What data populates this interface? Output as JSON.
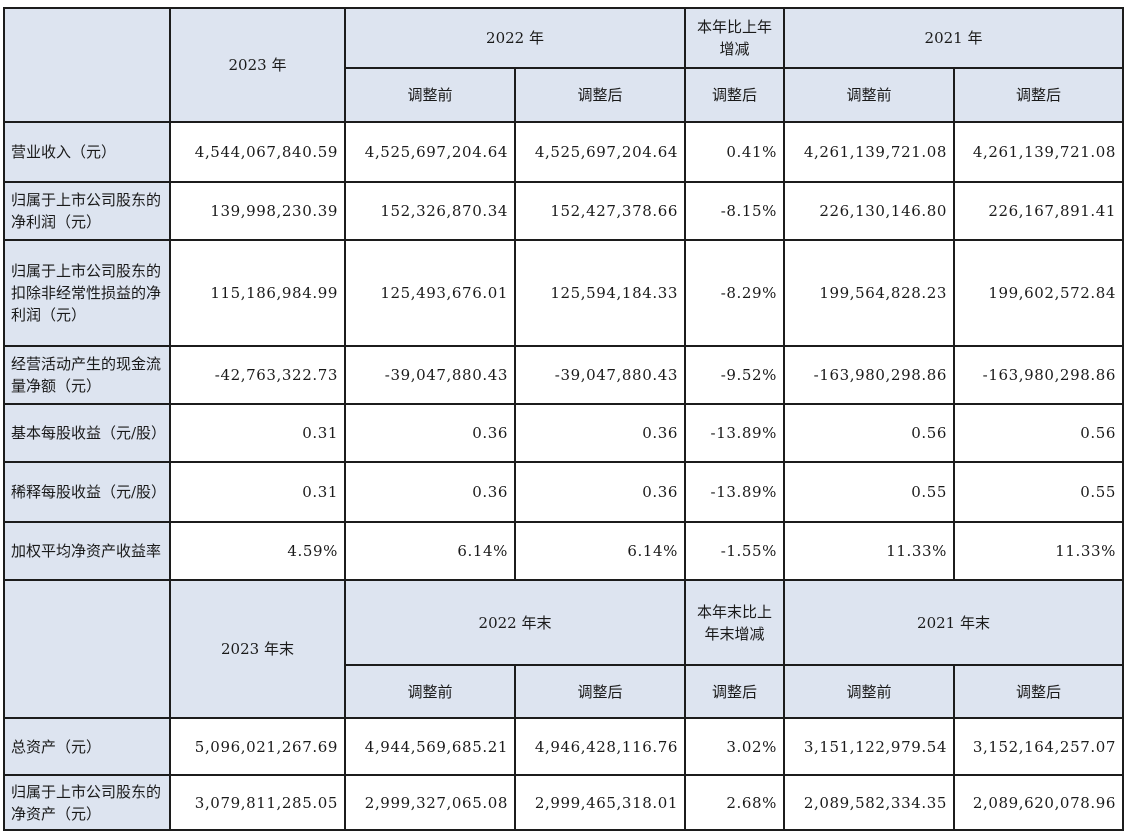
{
  "header1": {
    "y2023": "2023 年",
    "y2022": "2022 年",
    "change": "本年比上年增减",
    "y2021": "2021 年",
    "before": "调整前",
    "after": "调整后",
    "change_after": "调整后",
    "before_2021": "调整前",
    "after_2021": "调整后"
  },
  "rows1": [
    {
      "label": "营业收入（元）",
      "v2023": "4,544,067,840.59",
      "v2022_before": "4,525,697,204.64",
      "v2022_after": "4,525,697,204.64",
      "change": "0.41%",
      "v2021_before": "4,261,139,721.08",
      "v2021_after": "4,261,139,721.08"
    },
    {
      "label": "归属于上市公司股东的净利润（元）",
      "v2023": "139,998,230.39",
      "v2022_before": "152,326,870.34",
      "v2022_after": "152,427,378.66",
      "change": "-8.15%",
      "v2021_before": "226,130,146.80",
      "v2021_after": "226,167,891.41"
    },
    {
      "label": "归属于上市公司股东的扣除非经常性损益的净利润（元）",
      "v2023": "115,186,984.99",
      "v2022_before": "125,493,676.01",
      "v2022_after": "125,594,184.33",
      "change": "-8.29%",
      "v2021_before": "199,564,828.23",
      "v2021_after": "199,602,572.84"
    },
    {
      "label": "经营活动产生的现金流量净额（元）",
      "v2023": "-42,763,322.73",
      "v2022_before": "-39,047,880.43",
      "v2022_after": "-39,047,880.43",
      "change": "-9.52%",
      "v2021_before": "-163,980,298.86",
      "v2021_after": "-163,980,298.86"
    },
    {
      "label": "基本每股收益（元/股）",
      "v2023": "0.31",
      "v2022_before": "0.36",
      "v2022_after": "0.36",
      "change": "-13.89%",
      "v2021_before": "0.56",
      "v2021_after": "0.56"
    },
    {
      "label": "稀释每股收益（元/股）",
      "v2023": "0.31",
      "v2022_before": "0.36",
      "v2022_after": "0.36",
      "change": "-13.89%",
      "v2021_before": "0.55",
      "v2021_after": "0.55"
    },
    {
      "label": "加权平均净资产收益率",
      "v2023": "4.59%",
      "v2022_before": "6.14%",
      "v2022_after": "6.14%",
      "change": "-1.55%",
      "v2021_before": "11.33%",
      "v2021_after": "11.33%"
    }
  ],
  "header2": {
    "y2023": "2023 年末",
    "y2022": "2022 年末",
    "change": "本年末比上年末增减",
    "y2021": "2021 年末",
    "before": "调整前",
    "after": "调整后",
    "change_after": "调整后",
    "before_2021": "调整前",
    "after_2021": "调整后"
  },
  "rows2": [
    {
      "label": "总资产（元）",
      "v2023": "5,096,021,267.69",
      "v2022_before": "4,944,569,685.21",
      "v2022_after": "4,946,428,116.76",
      "change": "3.02%",
      "v2021_before": "3,151,122,979.54",
      "v2021_after": "3,152,164,257.07"
    },
    {
      "label": "归属于上市公司股东的净资产（元）",
      "v2023": "3,079,811,285.05",
      "v2022_before": "2,999,327,065.08",
      "v2022_after": "2,999,465,318.01",
      "change": "2.68%",
      "v2021_before": "2,089,582,334.35",
      "v2021_after": "2,089,620,078.96"
    }
  ]
}
